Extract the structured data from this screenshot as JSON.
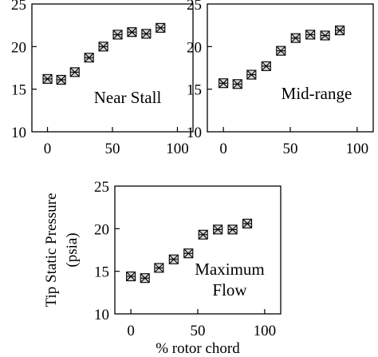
{
  "chart_data": [
    {
      "type": "scatter",
      "annotation": "Near Stall",
      "xlabel": "",
      "ylabel": "",
      "xlim": [
        -12,
        112
      ],
      "ylim": [
        10,
        25
      ],
      "xticks": [
        0,
        50,
        100
      ],
      "yticks": [
        10,
        15,
        20,
        25
      ],
      "grid": false,
      "series": [
        {
          "x": [
            0,
            10.5,
            21,
            32,
            43,
            54,
            65,
            76,
            87
          ],
          "y": [
            16.2,
            16.1,
            17.0,
            18.7,
            20.0,
            21.4,
            21.7,
            21.5,
            22.2
          ]
        }
      ]
    },
    {
      "type": "scatter",
      "annotation": "Mid-range",
      "xlabel": "",
      "ylabel": "",
      "xlim": [
        -12,
        112
      ],
      "ylim": [
        10,
        25
      ],
      "xticks": [
        0,
        50,
        100
      ],
      "yticks": [
        10,
        15,
        20,
        25
      ],
      "grid": false,
      "series": [
        {
          "x": [
            0,
            10.5,
            21,
            32,
            43,
            54,
            65,
            76,
            87
          ],
          "y": [
            15.7,
            15.6,
            16.7,
            17.7,
            19.5,
            21.0,
            21.4,
            21.3,
            21.9
          ]
        }
      ]
    },
    {
      "type": "scatter",
      "annotation_line1": "Maximum",
      "annotation_line2": "Flow",
      "xlabel": "% rotor chord",
      "ylabel_line1": "Tip Static Pressure",
      "ylabel_line2": "(psia)",
      "xlim": [
        -12,
        112
      ],
      "ylim": [
        10,
        25
      ],
      "xticks": [
        0,
        50,
        100
      ],
      "yticks": [
        10,
        15,
        20,
        25
      ],
      "grid": false,
      "series": [
        {
          "x": [
            0,
            10.5,
            21,
            32,
            43,
            54,
            65,
            76,
            87
          ],
          "y": [
            14.4,
            14.2,
            15.4,
            16.4,
            17.1,
            19.3,
            19.9,
            19.9,
            20.6
          ]
        }
      ]
    }
  ]
}
